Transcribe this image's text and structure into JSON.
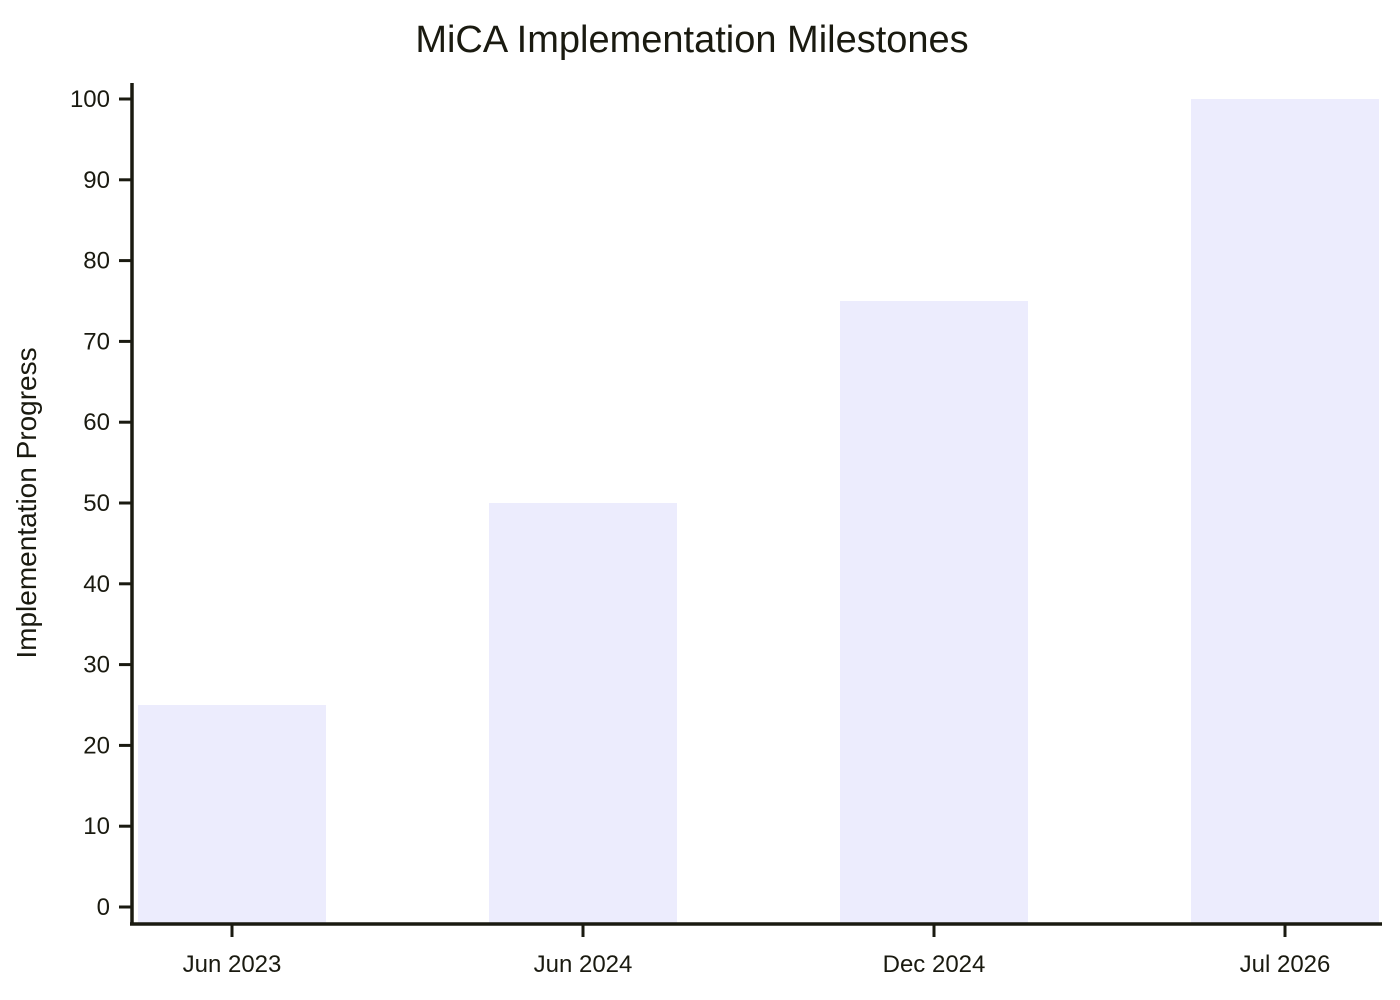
{
  "chart_data": {
    "type": "bar",
    "title": "MiCA Implementation Milestones",
    "xlabel": "",
    "ylabel": "Implementation Progress",
    "categories": [
      "Jun 2023",
      "Jun 2024",
      "Dec 2024",
      "Jul 2026"
    ],
    "values": [
      25,
      50,
      75,
      100
    ],
    "ylim": [
      0,
      100
    ],
    "yticks": [
      0,
      10,
      20,
      30,
      40,
      50,
      60,
      70,
      80,
      90,
      100
    ],
    "grid": false,
    "legend": "none",
    "colors": {
      "bar": "#ececfd",
      "axis": "#1a1a10",
      "text": "#1a1a10"
    }
  }
}
